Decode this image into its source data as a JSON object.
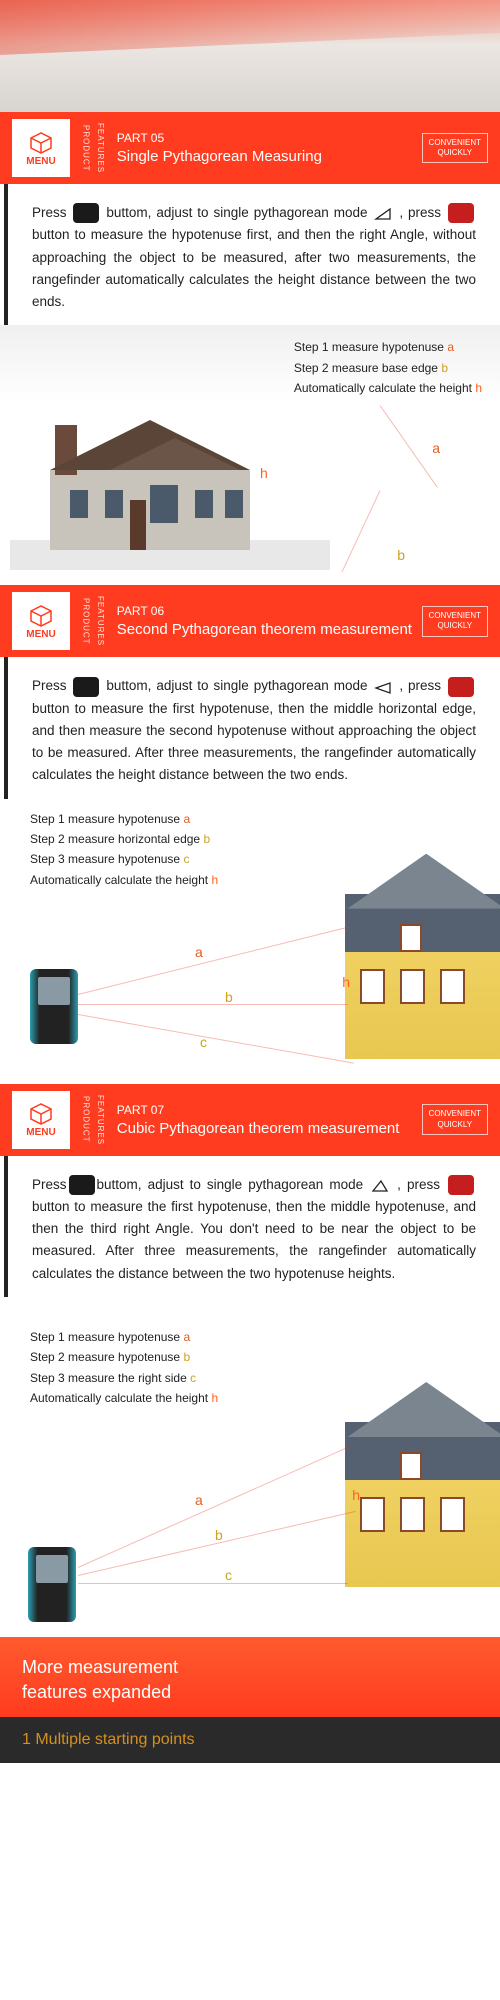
{
  "menu": {
    "label": "MENU",
    "vertical1": "PRODUCT",
    "vertical2": "FEATURES"
  },
  "badge": {
    "line1": "CONVENIENT",
    "line2": "QUICKLY"
  },
  "sections": [
    {
      "part": "PART 05",
      "title": "Single Pythagorean Measuring",
      "instruction_pre": "Press ",
      "instruction_mid1": " buttom, adjust to single pythagorean mode ",
      "instruction_mid2": " , press ",
      "instruction_post": " button to measure the hypotenuse first, and then the right Angle, without approaching the object to be measured, after two measurements, the rangefinder automatically calculates the height distance between the two ends.",
      "steps": [
        {
          "text": "Step 1 measure hypotenuse ",
          "letter": "a",
          "cls": "letter-a"
        },
        {
          "text": "Step 2 measure base edge ",
          "letter": "b",
          "cls": "letter-b"
        },
        {
          "text": "Automatically calculate the height ",
          "letter": "h",
          "cls": "letter-h"
        }
      ]
    },
    {
      "part": "PART 06",
      "title": "Second Pythagorean theorem measurement",
      "instruction_pre": "Press ",
      "instruction_mid1": " buttom, adjust to single pythagorean mode ",
      "instruction_mid2": " , press ",
      "instruction_post": " button to measure the first hypotenuse, then the middle horizontal edge, and then measure the second hypotenuse without approaching the object to be measured. After three measurements, the rangefinder automatically calculates the height distance between the two ends.",
      "steps": [
        {
          "text": "Step 1 measure hypotenuse ",
          "letter": "a",
          "cls": "letter-a"
        },
        {
          "text": "Step 2 measure horizontal edge ",
          "letter": "b",
          "cls": "letter-b"
        },
        {
          "text": "Step 3 measure hypotenuse ",
          "letter": "c",
          "cls": "letter-c"
        },
        {
          "text": "Automatically calculate the height ",
          "letter": "h",
          "cls": "letter-h"
        }
      ]
    },
    {
      "part": "PART 07",
      "title": "Cubic Pythagorean theorem measurement",
      "instruction_pre": "Press",
      "instruction_mid1": "buttom, adjust to single pythagorean mode ",
      "instruction_mid2": " , press ",
      "instruction_post": " button to measure the first hypotenuse, then the middle hypotenuse, and then the third right Angle. You don't need to be near the object to be measured. After three measurements, the rangefinder automatically calculates the distance between the two hypotenuse heights.",
      "steps": [
        {
          "text": "Step 1 measure hypotenuse ",
          "letter": "a",
          "cls": "letter-a"
        },
        {
          "text": "Step 2 measure hypotenuse ",
          "letter": "b",
          "cls": "letter-b"
        },
        {
          "text": "Step 3 measure the right side ",
          "letter": "c",
          "cls": "letter-c"
        },
        {
          "text": "Automatically calculate the height ",
          "letter": "h",
          "cls": "letter-h"
        }
      ]
    }
  ],
  "footer": {
    "line1": "More measurement",
    "line2": "features expanded",
    "sub": "1 Multiple starting points"
  },
  "labels": {
    "a": "a",
    "b": "b",
    "c": "c",
    "h": "h"
  },
  "colors": {
    "primary": "#ff3c1f",
    "dark": "#222",
    "house_yellow": "#f0d060",
    "roof_gray": "#7a8590",
    "laser": "rgba(230,60,40,0.35)"
  }
}
